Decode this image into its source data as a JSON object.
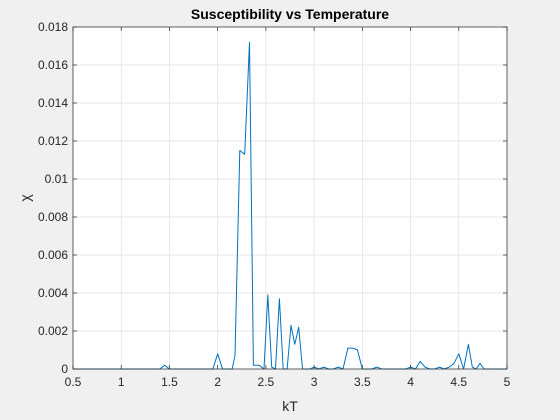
{
  "chart_data": {
    "type": "line",
    "title": "Susceptibility vs Temperature",
    "xlabel": "kT",
    "ylabel": "χ",
    "xlim": [
      0.5,
      5
    ],
    "ylim": [
      0,
      0.018
    ],
    "grid": true,
    "xticks": [
      "0.5",
      "1",
      "1.5",
      "2",
      "2.5",
      "3",
      "3.5",
      "4",
      "4.5",
      "5"
    ],
    "yticks": [
      "0",
      "0.002",
      "0.004",
      "0.006",
      "0.008",
      "0.01",
      "0.012",
      "0.014",
      "0.016",
      "0.018"
    ],
    "line_color": "#0072BD",
    "series": [
      {
        "x": [
          0.5,
          0.6,
          0.7,
          0.8,
          0.9,
          1.0,
          1.1,
          1.2,
          1.3,
          1.4,
          1.45,
          1.5,
          1.6,
          1.7,
          1.8,
          1.9,
          1.95,
          2.0,
          2.05,
          2.1,
          2.15,
          2.18,
          2.23,
          2.28,
          2.33,
          2.37,
          2.43,
          2.48,
          2.52,
          2.56,
          2.6,
          2.64,
          2.68,
          2.72,
          2.76,
          2.8,
          2.84,
          2.88,
          2.92,
          2.96,
          3.0,
          3.05,
          3.1,
          3.15,
          3.2,
          3.25,
          3.3,
          3.35,
          3.4,
          3.45,
          3.5,
          3.55,
          3.6,
          3.65,
          3.7,
          3.75,
          3.8,
          3.85,
          3.9,
          3.95,
          4.0,
          4.05,
          4.1,
          4.15,
          4.2,
          4.25,
          4.3,
          4.35,
          4.4,
          4.45,
          4.5,
          4.55,
          4.6,
          4.64,
          4.68,
          4.72,
          4.76,
          4.8,
          4.85,
          4.9,
          4.95,
          5.0
        ],
        "y": [
          0,
          0,
          0,
          0,
          0,
          0,
          0,
          0,
          0,
          0,
          0.0002,
          0,
          0,
          0,
          0,
          0,
          0,
          0.0008,
          0,
          0,
          0,
          0.0007,
          0.0115,
          0.0113,
          0.0172,
          0.0002,
          0.0002,
          0,
          0.0039,
          0.0001,
          0,
          0.0037,
          0,
          0,
          0.0023,
          0.0013,
          0.0022,
          0,
          0,
          0,
          0.0001,
          0,
          0.0001,
          0,
          0,
          0.0001,
          0,
          0.0011,
          0.0011,
          0.001,
          0,
          0,
          0,
          0.0001,
          0,
          0,
          0,
          0,
          0,
          0,
          0.0001,
          0,
          0.0004,
          0.0001,
          0,
          0,
          0.0001,
          0,
          0.0001,
          0.0003,
          0.0008,
          0,
          0.0013,
          0.0001,
          0,
          0.0003,
          0,
          0,
          0,
          0,
          0,
          0
        ]
      }
    ]
  }
}
